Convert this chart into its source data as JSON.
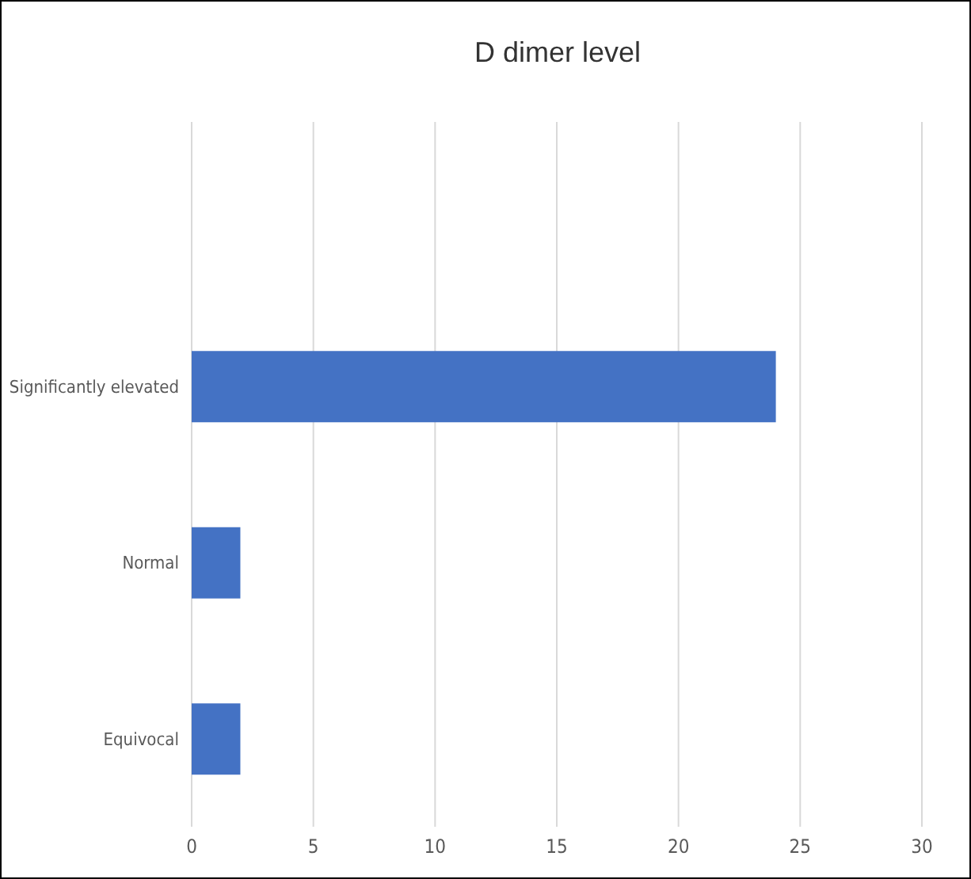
{
  "chart_data": {
    "type": "bar",
    "orientation": "horizontal",
    "title": "D dimer level",
    "categories": [
      null,
      "Significantly elevated",
      "Normal",
      "Equivocal"
    ],
    "values": [
      null,
      24,
      2,
      2
    ],
    "color": "#4472c4",
    "xlim": [
      0,
      30
    ],
    "xticks": [
      0,
      5,
      10,
      15,
      20,
      25,
      30
    ],
    "grid": "x"
  }
}
